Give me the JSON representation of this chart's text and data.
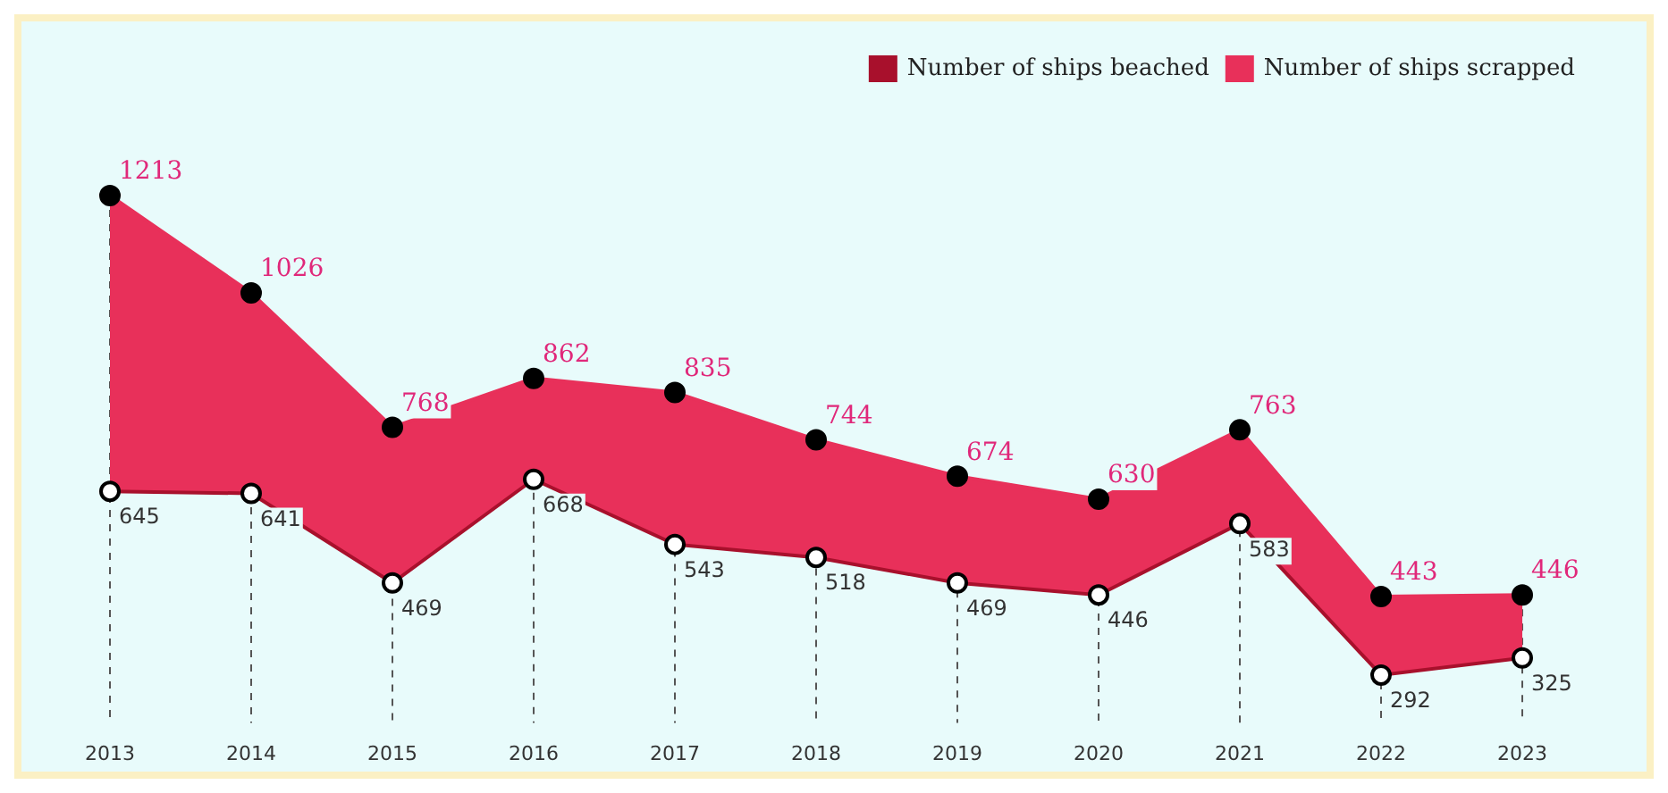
{
  "chart_data": {
    "type": "area",
    "categories": [
      "2013",
      "2014",
      "2015",
      "2016",
      "2017",
      "2018",
      "2019",
      "2020",
      "2021",
      "2022",
      "2023"
    ],
    "series": [
      {
        "name": "Number of ships scrapped",
        "color": "#e8305a",
        "values": [
          1213,
          1026,
          768,
          862,
          835,
          744,
          674,
          630,
          763,
          443,
          446
        ]
      },
      {
        "name": "Number of ships beached",
        "color": "#a8102c",
        "type": "line",
        "values": [
          645,
          641,
          469,
          668,
          543,
          518,
          469,
          446,
          583,
          292,
          325
        ]
      }
    ],
    "data_labels": true,
    "marker": "circle",
    "legend": "top right",
    "grid": "x"
  }
}
